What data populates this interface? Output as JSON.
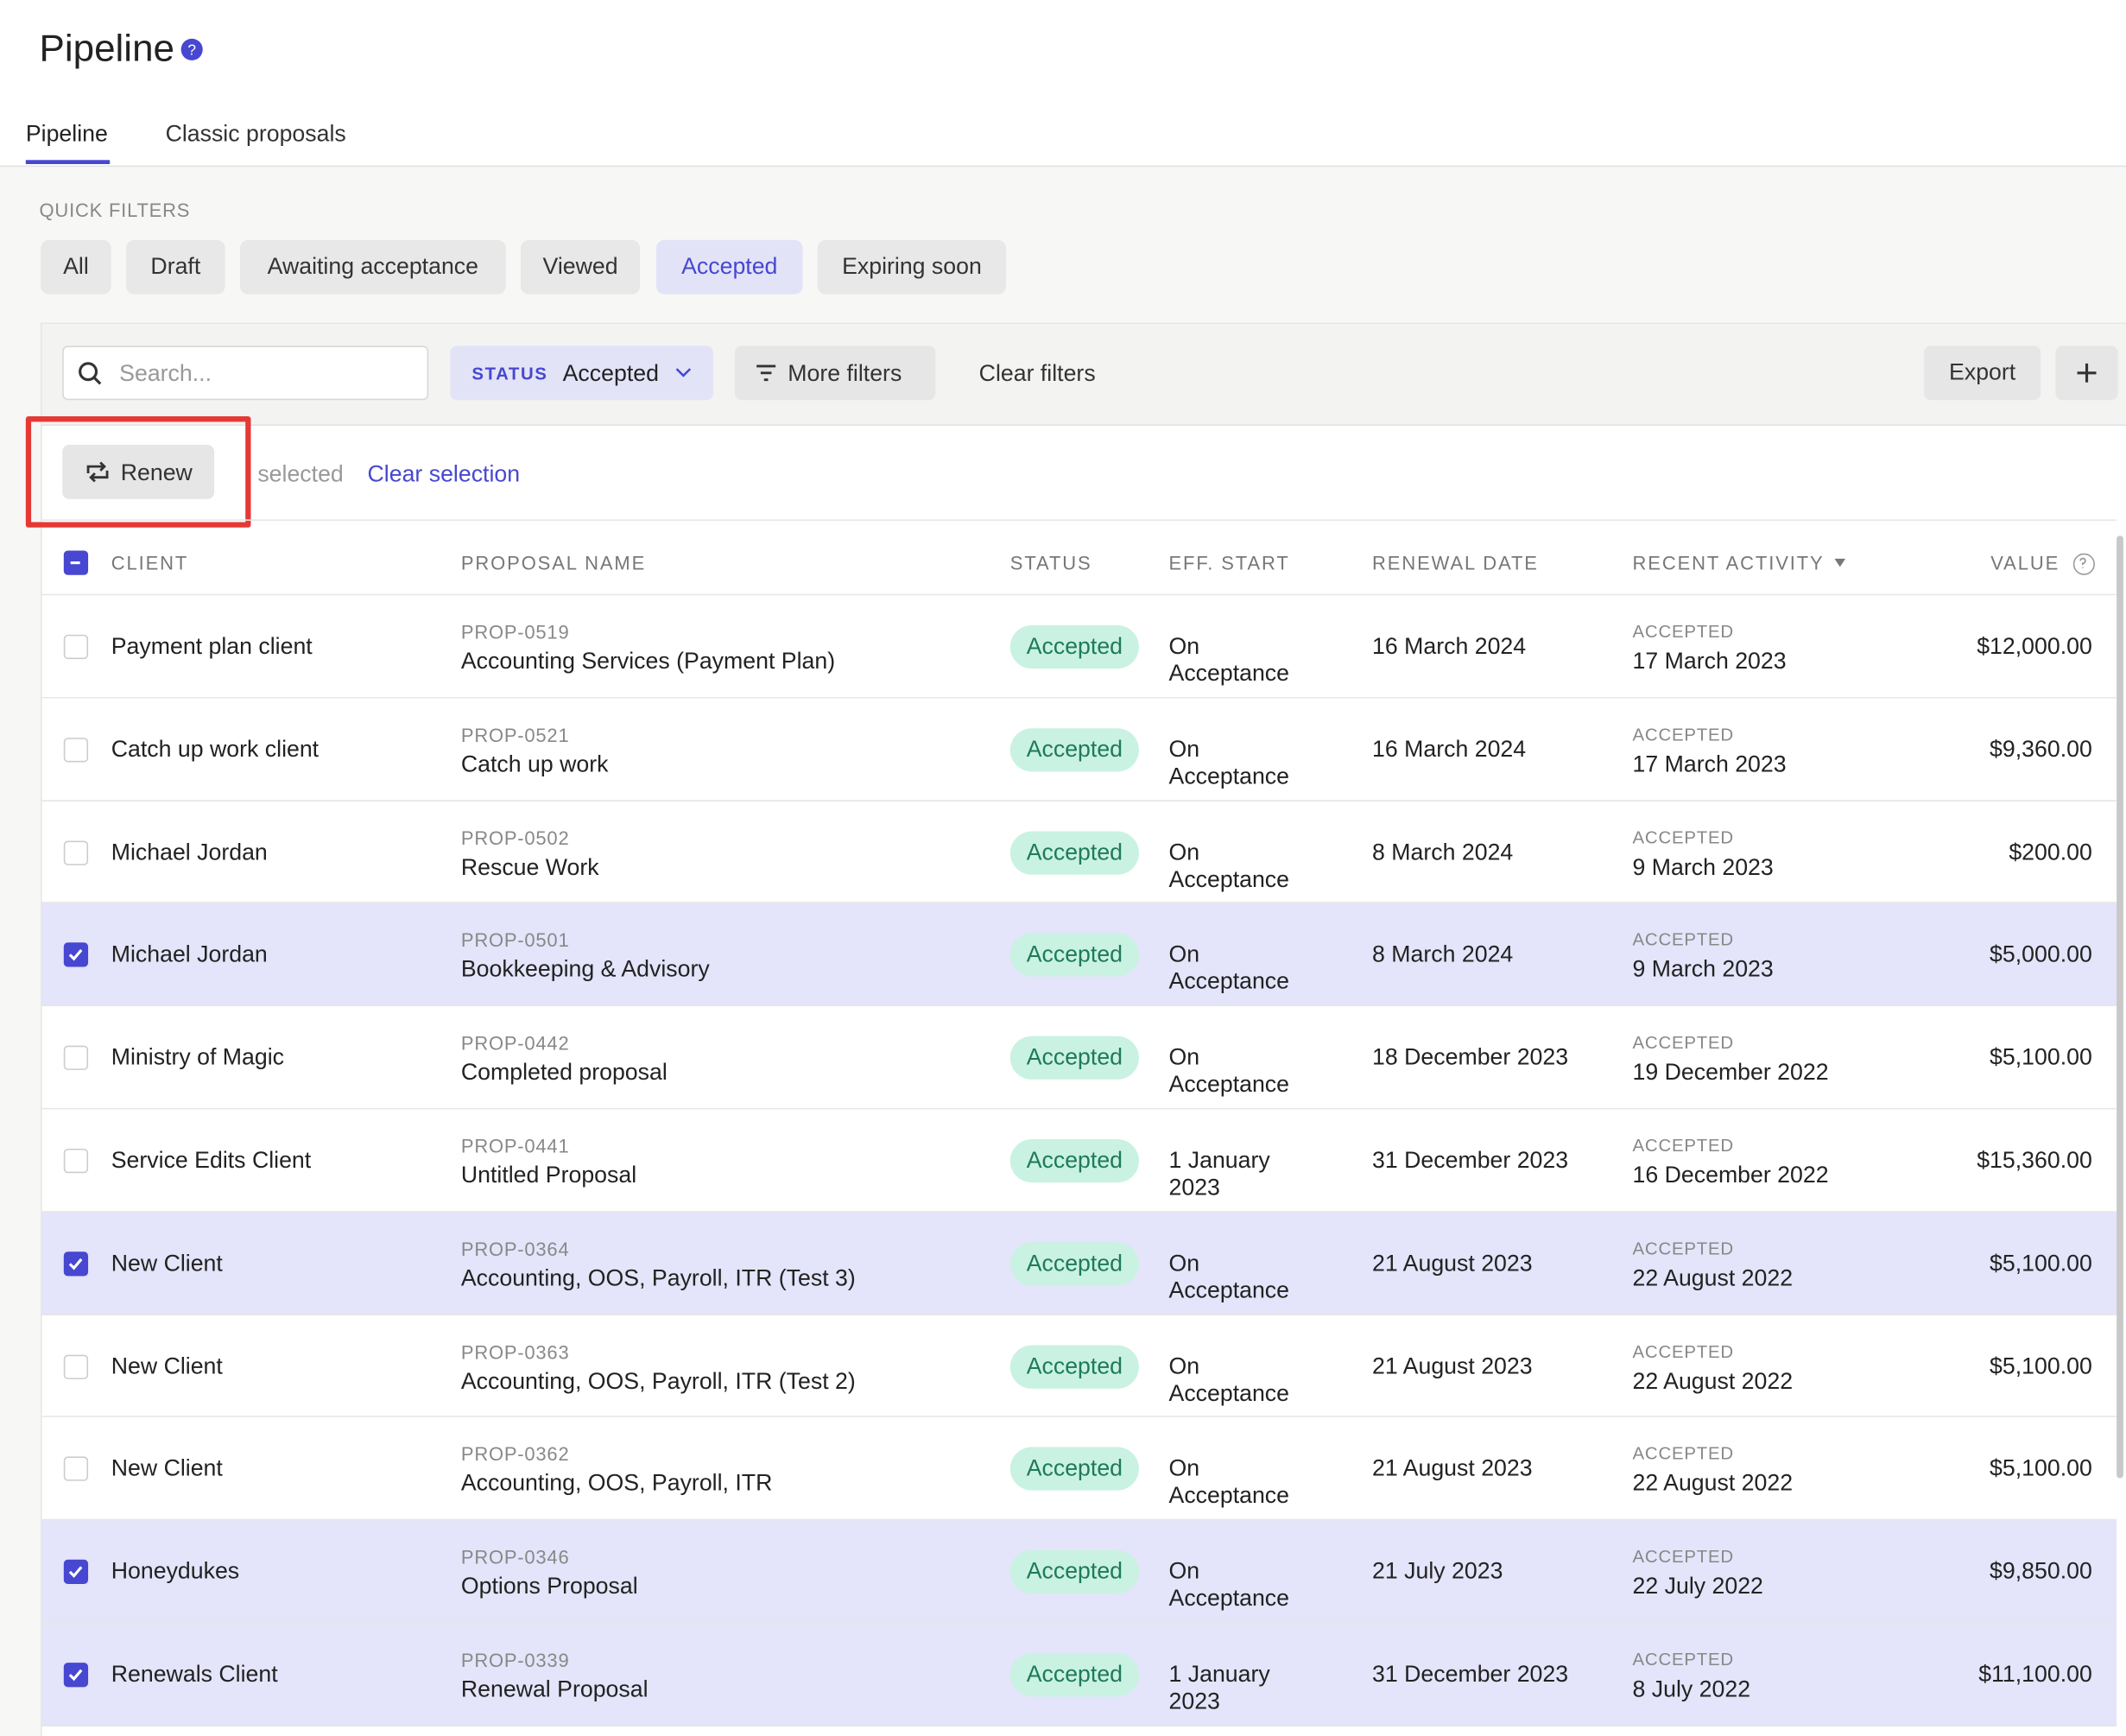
{
  "header": {
    "title": "Pipeline"
  },
  "tabs": [
    "Pipeline",
    "Classic proposals"
  ],
  "quick_filters": {
    "label": "QUICK FILTERS",
    "items": [
      "All",
      "Draft",
      "Awaiting acceptance",
      "Viewed",
      "Accepted",
      "Expiring soon"
    ],
    "active": 4
  },
  "toolbar": {
    "search_placeholder": "Search...",
    "status_label": "STATUS",
    "status_value": "Accepted",
    "more_filters": "More filters",
    "clear_filters": "Clear filters",
    "export": "Export"
  },
  "selection": {
    "renew": "Renew",
    "selected": "selected",
    "clear_selection": "Clear selection"
  },
  "table": {
    "columns": [
      "CLIENT",
      "PROPOSAL NAME",
      "STATUS",
      "EFF. START",
      "RENEWAL DATE",
      "RECENT ACTIVITY",
      "VALUE"
    ],
    "rows": [
      {
        "client": "Payment plan client",
        "id": "PROP-0519",
        "name": "Accounting Services (Payment Plan)",
        "status": "Accepted",
        "eff_start": "On Acceptance",
        "renewal": "16 March 2024",
        "activity": "ACCEPTED",
        "activity_date": "17 March 2023",
        "value": "$12,000.00",
        "selected": false
      },
      {
        "client": "Catch up work client",
        "id": "PROP-0521",
        "name": "Catch up work",
        "status": "Accepted",
        "eff_start": "On Acceptance",
        "renewal": "16 March 2024",
        "activity": "ACCEPTED",
        "activity_date": "17 March 2023",
        "value": "$9,360.00",
        "selected": false
      },
      {
        "client": "Michael Jordan",
        "id": "PROP-0502",
        "name": "Rescue Work",
        "status": "Accepted",
        "eff_start": "On Acceptance",
        "renewal": "8 March 2024",
        "activity": "ACCEPTED",
        "activity_date": "9 March 2023",
        "value": "$200.00",
        "selected": false
      },
      {
        "client": "Michael Jordan",
        "id": "PROP-0501",
        "name": "Bookkeeping & Advisory",
        "status": "Accepted",
        "eff_start": "On Acceptance",
        "renewal": "8 March 2024",
        "activity": "ACCEPTED",
        "activity_date": "9 March 2023",
        "value": "$5,000.00",
        "selected": true
      },
      {
        "client": "Ministry of Magic",
        "id": "PROP-0442",
        "name": "Completed proposal",
        "status": "Accepted",
        "eff_start": "On Acceptance",
        "renewal": "18 December 2023",
        "activity": "ACCEPTED",
        "activity_date": "19 December 2022",
        "value": "$5,100.00",
        "selected": false
      },
      {
        "client": "Service Edits Client",
        "id": "PROP-0441",
        "name": "Untitled Proposal",
        "status": "Accepted",
        "eff_start": "1 January 2023",
        "renewal": "31 December 2023",
        "activity": "ACCEPTED",
        "activity_date": "16 December 2022",
        "value": "$15,360.00",
        "selected": false
      },
      {
        "client": "New Client",
        "id": "PROP-0364",
        "name": "Accounting, OOS, Payroll, ITR (Test 3)",
        "status": "Accepted",
        "eff_start": "On Acceptance",
        "renewal": "21 August 2023",
        "activity": "ACCEPTED",
        "activity_date": "22 August 2022",
        "value": "$5,100.00",
        "selected": true
      },
      {
        "client": "New Client",
        "id": "PROP-0363",
        "name": "Accounting, OOS, Payroll, ITR (Test 2)",
        "status": "Accepted",
        "eff_start": "On Acceptance",
        "renewal": "21 August 2023",
        "activity": "ACCEPTED",
        "activity_date": "22 August 2022",
        "value": "$5,100.00",
        "selected": false
      },
      {
        "client": "New Client",
        "id": "PROP-0362",
        "name": "Accounting, OOS, Payroll, ITR",
        "status": "Accepted",
        "eff_start": "On Acceptance",
        "renewal": "21 August 2023",
        "activity": "ACCEPTED",
        "activity_date": "22 August 2022",
        "value": "$5,100.00",
        "selected": false
      },
      {
        "client": "Honeydukes",
        "id": "PROP-0346",
        "name": "Options Proposal",
        "status": "Accepted",
        "eff_start": "On Acceptance",
        "renewal": "21 July 2023",
        "activity": "ACCEPTED",
        "activity_date": "22 July 2022",
        "value": "$9,850.00",
        "selected": true
      },
      {
        "client": "Renewals Client",
        "id": "PROP-0339",
        "name": "Renewal Proposal",
        "status": "Accepted",
        "eff_start": "1 January 2023",
        "renewal": "31 December 2023",
        "activity": "ACCEPTED",
        "activity_date": "8 July 2022",
        "value": "$11,100.00",
        "selected": true
      }
    ]
  }
}
